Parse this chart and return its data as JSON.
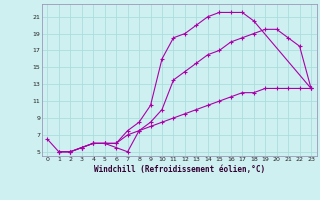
{
  "xlabel": "Windchill (Refroidissement éolien,°C)",
  "bg_color": "#cff0f0",
  "grid_color": "#aadddd",
  "line_color": "#aa00aa",
  "spine_color": "#9999bb",
  "xlim": [
    -0.5,
    23.5
  ],
  "ylim": [
    4.5,
    22.5
  ],
  "xticks": [
    0,
    1,
    2,
    3,
    4,
    5,
    6,
    7,
    8,
    9,
    10,
    11,
    12,
    13,
    14,
    15,
    16,
    17,
    18,
    19,
    20,
    21,
    22,
    23
  ],
  "yticks": [
    5,
    7,
    9,
    11,
    13,
    15,
    17,
    19,
    21
  ],
  "curve1_x": [
    1,
    2,
    3,
    4,
    5,
    6,
    7,
    8,
    9,
    10,
    11,
    12,
    13,
    14,
    15,
    16,
    17,
    18,
    23
  ],
  "curve1_y": [
    5,
    5,
    5.5,
    6,
    6,
    6,
    7.5,
    8.5,
    10.5,
    16,
    18.5,
    19,
    20,
    21,
    21.5,
    21.5,
    21.5,
    20.5,
    12.5
  ],
  "curve2_x": [
    1,
    2,
    3,
    4,
    5,
    6,
    7,
    8,
    9,
    10,
    11,
    12,
    13,
    14,
    15,
    16,
    17,
    18,
    19,
    20,
    21,
    22,
    23
  ],
  "curve2_y": [
    5,
    5,
    5.5,
    6,
    6,
    5.5,
    5,
    7.5,
    8.5,
    10,
    13.5,
    14.5,
    15.5,
    16.5,
    17,
    18,
    18.5,
    19,
    19.5,
    19.5,
    18.5,
    17.5,
    12.5
  ],
  "curve3_x": [
    0,
    1,
    2,
    3,
    4,
    5,
    6,
    7,
    8,
    9,
    10,
    11,
    12,
    13,
    14,
    15,
    16,
    17,
    18,
    19,
    20,
    21,
    22,
    23
  ],
  "curve3_y": [
    6.5,
    5,
    5,
    5.5,
    6,
    6,
    6,
    7,
    7.5,
    8,
    8.5,
    9,
    9.5,
    10,
    10.5,
    11,
    11.5,
    12,
    12,
    12.5,
    12.5,
    12.5,
    12.5,
    12.5
  ]
}
